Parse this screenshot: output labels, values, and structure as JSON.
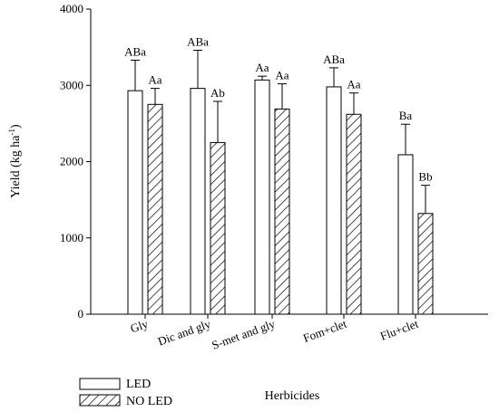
{
  "chart_data": {
    "type": "bar",
    "xlabel": "Herbicides",
    "ylabel": "Yield (kg ha",
    "ylabel_sup": "-1",
    "ylabel_end": ")",
    "categories": [
      "Gly",
      "Dic and gly",
      "S-met and gly",
      "Fom+clet",
      "Flu+clet"
    ],
    "ylim": [
      0,
      4000
    ],
    "yticks": [
      0,
      1000,
      2000,
      3000,
      4000
    ],
    "grid": false,
    "legend_position": "bottom-left",
    "series": [
      {
        "name": "LED",
        "pattern": "solid-white",
        "values": [
          2930,
          2960,
          3070,
          2980,
          2090
        ],
        "errors": [
          400,
          500,
          50,
          250,
          400
        ],
        "labels": [
          "ABa",
          "ABa",
          "Aa",
          "ABa",
          "Ba"
        ]
      },
      {
        "name": "NO LED",
        "pattern": "diagonal-hatch",
        "values": [
          2750,
          2250,
          2690,
          2620,
          1320
        ],
        "errors": [
          210,
          540,
          330,
          280,
          370
        ],
        "labels": [
          "Aa",
          "Ab",
          "Aa",
          "Aa",
          "Bb"
        ]
      }
    ]
  }
}
